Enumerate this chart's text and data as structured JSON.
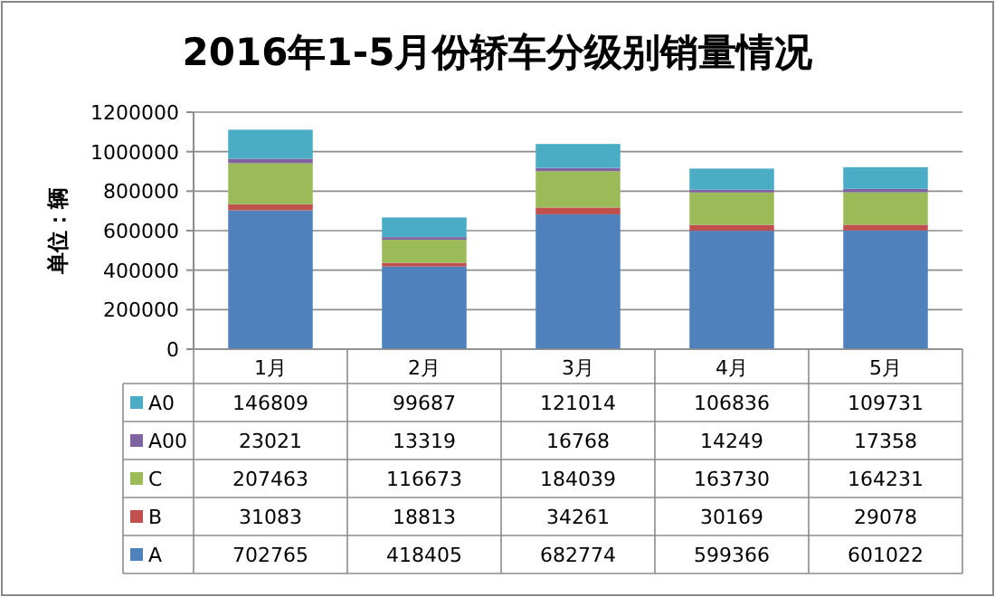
{
  "chart_data": {
    "type": "bar",
    "stacked": true,
    "title": "2016年1-5月份轿车分级别销量情况",
    "ylabel": "单位：辆",
    "categories": [
      "1月",
      "2月",
      "3月",
      "4月",
      "5月"
    ],
    "series": [
      {
        "name": "A",
        "color": "#4f81bd",
        "values": [
          702765,
          418405,
          682774,
          599366,
          601022
        ]
      },
      {
        "name": "B",
        "color": "#c0504d",
        "values": [
          31083,
          18813,
          34261,
          30169,
          29078
        ]
      },
      {
        "name": "C",
        "color": "#9bbb59",
        "values": [
          207463,
          116673,
          184039,
          163730,
          164231
        ]
      },
      {
        "name": "A00",
        "color": "#8064a2",
        "values": [
          23021,
          13319,
          16768,
          14249,
          17358
        ]
      },
      {
        "name": "A0",
        "color": "#4bacc6",
        "values": [
          146809,
          99687,
          121014,
          106836,
          109731
        ]
      }
    ],
    "ylim": [
      0,
      1200000
    ],
    "yticks": [
      0,
      200000,
      400000,
      600000,
      800000,
      1000000,
      1200000
    ],
    "grid": "y",
    "legend": "bottom",
    "data_labels": true
  }
}
